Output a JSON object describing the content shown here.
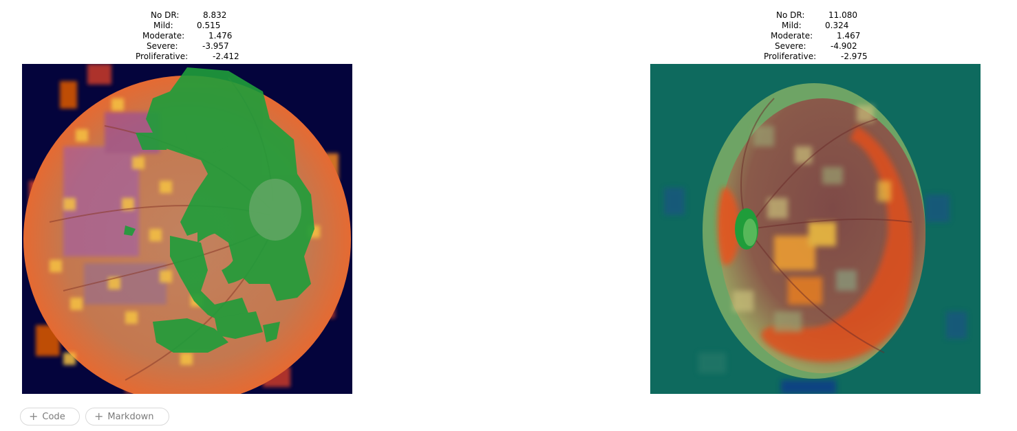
{
  "panels": [
    {
      "scores": [
        {
          "label": "No DR:",
          "value": "8.832"
        },
        {
          "label": "Mild:",
          "value": "0.515"
        },
        {
          "label": "Moderate:",
          "value": "1.476"
        },
        {
          "label": "Severe:",
          "value": "-3.957"
        },
        {
          "label": "Proliferative:",
          "value": "-2.412"
        }
      ]
    },
    {
      "scores": [
        {
          "label": "No DR:",
          "value": "11.080"
        },
        {
          "label": "Mild:",
          "value": "0.324"
        },
        {
          "label": "Moderate:",
          "value": "1.467"
        },
        {
          "label": "Severe:",
          "value": "-4.902"
        },
        {
          "label": "Proliferative:",
          "value": "-2.975"
        }
      ]
    }
  ],
  "toolbar": {
    "add_code_label": "Code",
    "add_markdown_label": "Markdown",
    "plus_glyph": "+"
  }
}
